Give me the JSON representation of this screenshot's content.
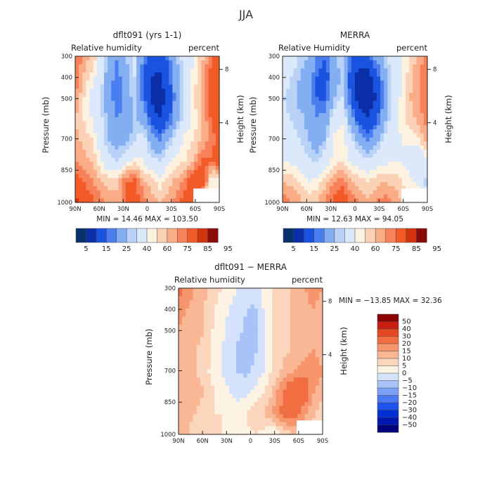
{
  "page_title": "JJA",
  "chart_data": [
    {
      "id": "model",
      "type": "heatmap",
      "title": "dflt091 (yrs 1-1)",
      "left_label": "Relative humidity",
      "right_label": "percent",
      "xlabel": "",
      "ylabel": "Pressure (mb)",
      "y2label": "Height (km)",
      "x_ticks": [
        "90N",
        "60N",
        "30N",
        "0",
        "30S",
        "60S",
        "90S"
      ],
      "y_ticks": [
        "300",
        "400",
        "500",
        "700",
        "850",
        "1000"
      ],
      "y2_ticks": [
        "8",
        "4"
      ],
      "ylim": [
        1000,
        300
      ],
      "stats": {
        "min": "14.46",
        "max": "103.50"
      },
      "stats_text": "MIN =   14.46   MAX =  103.50",
      "colorbar_ticks": [
        "5",
        "15",
        "25",
        "40",
        "60",
        "75",
        "85",
        "95"
      ],
      "z": [
        [
          82,
          72,
          70,
          57,
          40,
          35,
          45,
          52,
          34,
          28,
          25,
          32,
          45,
          55,
          60,
          68,
          78,
          85
        ],
        [
          80,
          70,
          62,
          55,
          38,
          32,
          42,
          50,
          30,
          20,
          18,
          28,
          42,
          55,
          62,
          72,
          82,
          86
        ],
        [
          75,
          65,
          57,
          50,
          38,
          30,
          40,
          48,
          32,
          18,
          15,
          22,
          40,
          55,
          65,
          72,
          85,
          88
        ],
        [
          70,
          65,
          60,
          52,
          42,
          35,
          38,
          45,
          42,
          25,
          20,
          28,
          42,
          55,
          62,
          70,
          80,
          85
        ],
        [
          72,
          68,
          65,
          55,
          45,
          40,
          42,
          50,
          55,
          40,
          35,
          45,
          55,
          62,
          65,
          70,
          78,
          82
        ],
        [
          75,
          72,
          70,
          60,
          52,
          50,
          58,
          62,
          60,
          52,
          50,
          58,
          62,
          65,
          70,
          82,
          80,
          85
        ],
        [
          85,
          80,
          75,
          70,
          68,
          70,
          80,
          82,
          72,
          68,
          62,
          68,
          72,
          78,
          88,
          90,
          60,
          60
        ],
        [
          92,
          88,
          82,
          78,
          72,
          70,
          82,
          85,
          78,
          72,
          70,
          72,
          78,
          85,
          90,
          60,
          60,
          60
        ]
      ]
    },
    {
      "id": "merra",
      "type": "heatmap",
      "title": "MERRA",
      "left_label": "Relative Humidity",
      "right_label": "percent",
      "xlabel": "",
      "ylabel": "Pressure (mb)",
      "y2label": "Height (km)",
      "x_ticks": [
        "90N",
        "60N",
        "30N",
        "0",
        "30S",
        "60S",
        "90S"
      ],
      "y_ticks": [
        "300",
        "400",
        "500",
        "700",
        "850",
        "1000"
      ],
      "y2_ticks": [
        "8",
        "4"
      ],
      "ylim": [
        1000,
        300
      ],
      "stats": {
        "min": "12.63",
        "max": "94.05"
      },
      "stats_text": "MIN =   12.63   MAX =   94.05",
      "colorbar_ticks": [
        "5",
        "15",
        "25",
        "40",
        "60",
        "75",
        "85",
        "95"
      ],
      "z": [
        [
          60,
          55,
          50,
          45,
          35,
          30,
          42,
          50,
          32,
          25,
          28,
          38,
          48,
          55,
          60,
          65,
          72,
          78
        ],
        [
          55,
          50,
          45,
          40,
          30,
          25,
          38,
          48,
          25,
          15,
          15,
          25,
          40,
          52,
          60,
          68,
          75,
          80
        ],
        [
          50,
          48,
          42,
          38,
          30,
          28,
          45,
          50,
          28,
          15,
          12,
          20,
          38,
          52,
          62,
          70,
          75,
          80
        ],
        [
          52,
          50,
          48,
          42,
          35,
          38,
          55,
          58,
          40,
          25,
          20,
          28,
          42,
          55,
          62,
          68,
          72,
          78
        ],
        [
          55,
          52,
          50,
          45,
          40,
          45,
          62,
          65,
          52,
          42,
          35,
          42,
          52,
          58,
          60,
          62,
          65,
          72
        ],
        [
          60,
          58,
          55,
          52,
          48,
          55,
          62,
          64,
          58,
          55,
          52,
          55,
          58,
          60,
          60,
          55,
          50,
          60
        ],
        [
          70,
          68,
          65,
          60,
          62,
          68,
          75,
          78,
          70,
          68,
          65,
          68,
          70,
          68,
          65,
          62,
          58,
          45
        ],
        [
          80,
          75,
          72,
          68,
          70,
          75,
          82,
          85,
          80,
          75,
          72,
          75,
          78,
          75,
          70,
          68,
          65,
          60
        ]
      ]
    },
    {
      "id": "diff",
      "type": "heatmap",
      "title": "dflt091 − MERRA",
      "left_label": "Relative humidity",
      "right_label": "percent",
      "xlabel": "",
      "ylabel": "Pressure (mb)",
      "y2label": "Height (km)",
      "x_ticks": [
        "90N",
        "60N",
        "30N",
        "0",
        "30S",
        "60S",
        "90S"
      ],
      "y_ticks": [
        "300",
        "400",
        "500",
        "700",
        "850",
        "1000"
      ],
      "y2_ticks": [
        "8",
        "4"
      ],
      "ylim": [
        1000,
        300
      ],
      "stats": {
        "min": "-13.85",
        "max": "32.36"
      },
      "stats_text": "MIN = −13.85   MAX =   32.36",
      "colorbar_ticks": [
        "50",
        "40",
        "30",
        "20",
        "15",
        "10",
        "5",
        "0",
        "−5",
        "−10",
        "−15",
        "−20",
        "−30",
        "−40",
        "−50"
      ],
      "z": [
        [
          22,
          18,
          15,
          12,
          8,
          5,
          2,
          0,
          -2,
          -2,
          2,
          5,
          8,
          10,
          12,
          15,
          18,
          15
        ],
        [
          18,
          15,
          12,
          10,
          6,
          3,
          0,
          -3,
          -5,
          -6,
          0,
          4,
          8,
          10,
          12,
          14,
          15,
          12
        ],
        [
          15,
          12,
          12,
          10,
          5,
          2,
          -2,
          -4,
          -6,
          -8,
          -2,
          4,
          8,
          10,
          12,
          12,
          14,
          12
        ],
        [
          14,
          12,
          10,
          8,
          4,
          0,
          -3,
          -6,
          -8,
          -6,
          -1,
          5,
          8,
          10,
          12,
          14,
          15,
          12
        ],
        [
          14,
          12,
          10,
          8,
          3,
          0,
          -3,
          -5,
          -6,
          -4,
          0,
          5,
          10,
          14,
          16,
          18,
          20,
          15
        ],
        [
          14,
          12,
          12,
          10,
          6,
          3,
          0,
          -2,
          -2,
          2,
          5,
          10,
          18,
          25,
          30,
          24,
          15,
          10
        ],
        [
          12,
          12,
          10,
          8,
          5,
          5,
          4,
          3,
          5,
          8,
          10,
          15,
          20,
          25,
          22,
          15,
          10,
          8
        ],
        [
          10,
          10,
          8,
          7,
          6,
          5,
          5,
          4,
          4,
          5,
          3,
          -2,
          5,
          8,
          10,
          10,
          8,
          5
        ]
      ]
    }
  ],
  "colors": {
    "levels14": [
      "#08306b",
      "#0a2fa8",
      "#1a53e0",
      "#4a7eee",
      "#84aef2",
      "#b9d2f7",
      "#dbe9fb",
      "#fdf2e0",
      "#fbd2b6",
      "#f9ac86",
      "#f7825a",
      "#f25a28",
      "#d3330f",
      "#8b0b0b"
    ],
    "diffLevels": [
      "#00007d",
      "#0016b0",
      "#0031d6",
      "#1e52ec",
      "#4d79f2",
      "#7ca0f5",
      "#a8c3f8",
      "#d4e3fb",
      "#fdf3e4",
      "#fbd6bd",
      "#f9b795",
      "#f7966d",
      "#f06e42",
      "#e54722",
      "#c81e0f",
      "#8b0000"
    ],
    "axis": "#222222",
    "mask": "#ffffff"
  }
}
